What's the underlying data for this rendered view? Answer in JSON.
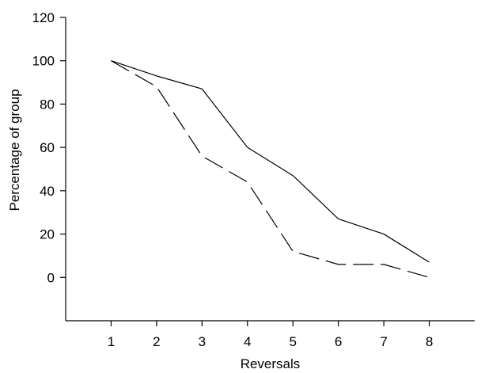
{
  "chart_data": {
    "type": "line",
    "title": "",
    "xlabel": "Reversals",
    "ylabel": "Percentage of group",
    "x": [
      1,
      2,
      3,
      4,
      5,
      6,
      7,
      8
    ],
    "xlim": [
      0,
      9
    ],
    "ylim": [
      -20,
      120
    ],
    "yticks": [
      0,
      20,
      40,
      60,
      80,
      100,
      120
    ],
    "xticks": [
      1,
      2,
      3,
      4,
      5,
      6,
      7,
      8
    ],
    "grid": false,
    "legend": "none",
    "series": [
      {
        "style": "solid",
        "color": "#000000",
        "values": [
          100,
          93,
          87,
          60,
          47,
          27,
          20,
          7
        ]
      },
      {
        "style": "dashed",
        "color": "#000000",
        "values": [
          100,
          88,
          56,
          44,
          12,
          6,
          6,
          0
        ]
      }
    ]
  }
}
